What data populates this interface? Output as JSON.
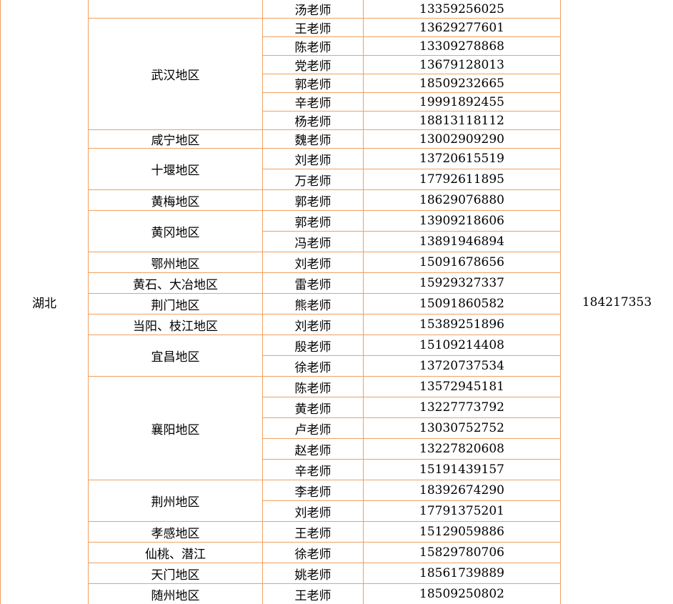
{
  "province": "湖北",
  "qq_group": "184217353",
  "regions": [
    {
      "teachers": [
        {
          "name": "汤老师",
          "phone": "13359256025"
        }
      ]
    },
    {
      "name": "武汉地区",
      "teachers": [
        {
          "name": "王老师",
          "phone": "13629277601"
        },
        {
          "name": "陈老师",
          "phone": "13309278868"
        },
        {
          "name": "党老师",
          "phone": "13679128013"
        },
        {
          "name": "郭老师",
          "phone": "18509232665"
        },
        {
          "name": "辛老师",
          "phone": "19991892455"
        },
        {
          "name": "杨老师",
          "phone": "18813118112"
        }
      ]
    },
    {
      "name": "咸宁地区",
      "teachers": [
        {
          "name": "魏老师",
          "phone": "13002909290"
        }
      ]
    },
    {
      "name": "十堰地区",
      "teachers": [
        {
          "name": "刘老师",
          "phone": "13720615519"
        },
        {
          "name": "万老师",
          "phone": "17792611895"
        }
      ]
    },
    {
      "name": "黄梅地区",
      "teachers": [
        {
          "name": "郭老师",
          "phone": "18629076880"
        }
      ]
    },
    {
      "name": "黄冈地区",
      "teachers": [
        {
          "name": "郭老师",
          "phone": "13909218606"
        },
        {
          "name": "冯老师",
          "phone": "13891946894"
        }
      ]
    },
    {
      "name": "鄂州地区",
      "teachers": [
        {
          "name": "刘老师",
          "phone": "15091678656"
        }
      ]
    },
    {
      "name": "黄石、大冶地区",
      "teachers": [
        {
          "name": "雷老师",
          "phone": "15929327337"
        }
      ]
    },
    {
      "name": "荆门地区",
      "teachers": [
        {
          "name": "熊老师",
          "phone": "15091860582"
        }
      ]
    },
    {
      "name": "当阳、枝江地区",
      "teachers": [
        {
          "name": "刘老师",
          "phone": "15389251896"
        }
      ]
    },
    {
      "name": "宜昌地区",
      "teachers": [
        {
          "name": "殷老师",
          "phone": "15109214408"
        },
        {
          "name": "徐老师",
          "phone": "13720737534"
        }
      ]
    },
    {
      "name": "襄阳地区",
      "teachers": [
        {
          "name": "陈老师",
          "phone": "13572945181"
        },
        {
          "name": "黄老师",
          "phone": "13227773792"
        },
        {
          "name": "卢老师",
          "phone": "13030752752"
        },
        {
          "name": "赵老师",
          "phone": "13227820608"
        },
        {
          "name": "辛老师",
          "phone": "15191439157"
        }
      ]
    },
    {
      "name": "荆州地区",
      "teachers": [
        {
          "name": "李老师",
          "phone": "18392674290"
        },
        {
          "name": "刘老师",
          "phone": "17791375201"
        }
      ]
    },
    {
      "name": "孝感地区",
      "teachers": [
        {
          "name": "王老师",
          "phone": "15129059886"
        }
      ]
    },
    {
      "name": "仙桃、潜江",
      "teachers": [
        {
          "name": "徐老师",
          "phone": "15829780706"
        }
      ]
    },
    {
      "name": "天门地区",
      "teachers": [
        {
          "name": "姚老师",
          "phone": "18561739889"
        }
      ]
    },
    {
      "name": "随州地区",
      "teachers": [
        {
          "name": "王老师",
          "phone": "18509250802"
        }
      ]
    }
  ]
}
